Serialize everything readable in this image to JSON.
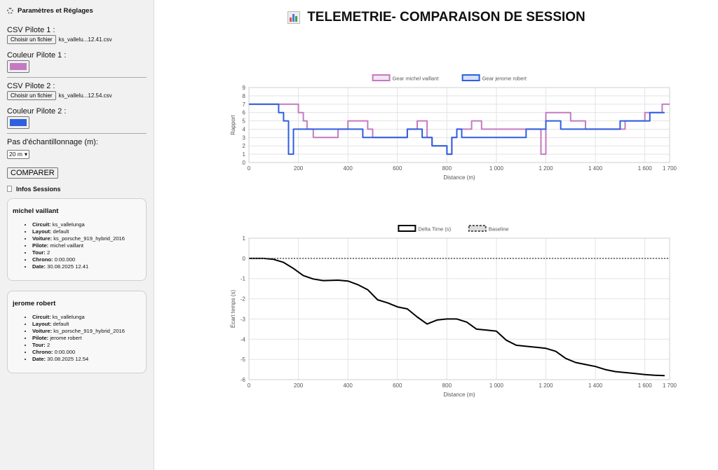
{
  "sidebar": {
    "title": "Paramètres et Réglages",
    "csv1_label": "CSV Pilote 1 :",
    "csv1_button": "Choisir un fichier",
    "csv1_file": "ks_vallelu...12.41.csv",
    "color1_label": "Couleur Pilote 1 :",
    "color1": "#c47ac0",
    "csv2_label": "CSV Pilote 2 :",
    "csv2_button": "Choisir un fichier",
    "csv2_file": "ks_vallelu...12.54.csv",
    "color2_label": "Couleur Pilote 2 :",
    "color2": "#2f5fe0",
    "step_label": "Pas d'échantillonnage (m):",
    "step_value": "20 m",
    "compare_button": "COMPARER",
    "infos_title": "Infos Sessions"
  },
  "sessions": [
    {
      "name": "michel vaillant",
      "circuit_label": "Circuit:",
      "circuit": "ks_vallelunga",
      "layout_label": "Layout:",
      "layout": "default",
      "car_label": "Voiture:",
      "car": "ks_porsche_919_hybrid_2016",
      "driver_label": "Pilote:",
      "driver": "michel vaillant",
      "lap_label": "Tour:",
      "lap": "2",
      "chrono_label": "Chrono:",
      "chrono": "0:00.000",
      "date_label": "Date:",
      "date": "30.08.2025 12.41"
    },
    {
      "name": "jerome robert",
      "circuit_label": "Circuit:",
      "circuit": "ks_vallelunga",
      "layout_label": "Layout:",
      "layout": "default",
      "car_label": "Voiture:",
      "car": "ks_porsche_919_hybrid_2016",
      "driver_label": "Pilote:",
      "driver": "jerome robert",
      "lap_label": "Tour:",
      "lap": "2",
      "chrono_label": "Chrono:",
      "chrono": "0:00.000",
      "date_label": "Date:",
      "date": "30.08.2025 12.54"
    }
  ],
  "main": {
    "title": "TELEMETRIE- COMPARAISON DE SESSION"
  },
  "chart_data": [
    {
      "type": "line",
      "legend_position": "top",
      "grid": true,
      "xlabel": "Distance (m)",
      "ylabel": "Rapport",
      "xlim": [
        0,
        1700
      ],
      "ylim": [
        0,
        9
      ],
      "x_ticks": [
        "0",
        "200",
        "400",
        "600",
        "800",
        "1 000",
        "1 200",
        "1 400",
        "1 600",
        "1 700"
      ],
      "y_ticks": [
        "0",
        "1",
        "2",
        "3",
        "4",
        "5",
        "6",
        "7",
        "8",
        "9"
      ],
      "series": [
        {
          "name": "Gear michel vaillant",
          "color": "#c47ac0",
          "x": [
            0,
            200,
            200,
            220,
            220,
            235,
            235,
            260,
            260,
            360,
            360,
            400,
            400,
            480,
            480,
            500,
            500,
            640,
            640,
            680,
            680,
            720,
            720,
            740,
            740,
            800,
            800,
            820,
            820,
            840,
            840,
            900,
            900,
            940,
            940,
            1180,
            1180,
            1200,
            1200,
            1300,
            1300,
            1360,
            1360,
            1520,
            1520,
            1600,
            1600,
            1650,
            1650,
            1670,
            1670,
            1700
          ],
          "y": [
            7,
            7,
            6,
            6,
            5,
            5,
            4,
            4,
            3,
            3,
            4,
            4,
            5,
            5,
            4,
            4,
            3,
            3,
            4,
            4,
            5,
            5,
            3,
            3,
            2,
            2,
            1,
            1,
            3,
            3,
            4,
            4,
            5,
            5,
            4,
            4,
            1,
            1,
            6,
            6,
            5,
            5,
            4,
            4,
            5,
            5,
            6,
            6,
            6,
            6,
            7,
            7
          ]
        },
        {
          "name": "Gear jerome robert",
          "color": "#2f5fe0",
          "x": [
            0,
            120,
            120,
            140,
            140,
            160,
            160,
            180,
            180,
            460,
            460,
            500,
            500,
            640,
            640,
            700,
            700,
            740,
            740,
            800,
            800,
            820,
            820,
            840,
            840,
            860,
            860,
            900,
            900,
            1120,
            1120,
            1180,
            1180,
            1200,
            1200,
            1260,
            1260,
            1500,
            1500,
            1620,
            1620,
            1640,
            1640,
            1680
          ],
          "y": [
            7,
            7,
            6,
            6,
            5,
            5,
            1,
            1,
            4,
            4,
            3,
            3,
            3,
            3,
            4,
            4,
            3,
            3,
            2,
            2,
            1,
            1,
            3,
            3,
            4,
            4,
            3,
            3,
            3,
            3,
            4,
            4,
            4,
            4,
            5,
            5,
            4,
            4,
            5,
            5,
            6,
            6,
            6,
            6
          ]
        }
      ]
    },
    {
      "type": "line",
      "legend_position": "top",
      "grid": true,
      "xlabel": "Distance (m)",
      "ylabel": "Écart temps (s)",
      "xlim": [
        0,
        1700
      ],
      "ylim": [
        -6,
        1
      ],
      "x_ticks": [
        "0",
        "200",
        "400",
        "600",
        "800",
        "1 000",
        "1 200",
        "1 400",
        "1 600",
        "1 700"
      ],
      "y_ticks": [
        "1",
        "0",
        "-1",
        "-2",
        "-3",
        "-4",
        "-5",
        "-6"
      ],
      "series": [
        {
          "name": "Delta Time (s)",
          "color": "#000000",
          "x": [
            0,
            60,
            100,
            140,
            180,
            220,
            260,
            300,
            360,
            400,
            440,
            480,
            520,
            560,
            600,
            640,
            680,
            720,
            760,
            800,
            840,
            880,
            920,
            960,
            1000,
            1040,
            1080,
            1120,
            1160,
            1200,
            1240,
            1280,
            1320,
            1360,
            1400,
            1440,
            1480,
            1520,
            1560,
            1600,
            1640,
            1680
          ],
          "y": [
            0,
            0,
            -0.05,
            -0.2,
            -0.5,
            -0.85,
            -1.02,
            -1.1,
            -1.08,
            -1.12,
            -1.3,
            -1.55,
            -2.05,
            -2.2,
            -2.4,
            -2.5,
            -2.9,
            -3.25,
            -3.05,
            -3.0,
            -3.0,
            -3.15,
            -3.5,
            -3.55,
            -3.6,
            -4.05,
            -4.3,
            -4.35,
            -4.4,
            -4.45,
            -4.6,
            -4.95,
            -5.15,
            -5.25,
            -5.35,
            -5.5,
            -5.6,
            -5.65,
            -5.7,
            -5.75,
            -5.78,
            -5.8
          ]
        },
        {
          "name": "Baseline",
          "color": "#555555",
          "dashed": true,
          "x": [
            0,
            1700
          ],
          "y": [
            0,
            0
          ]
        }
      ]
    }
  ]
}
